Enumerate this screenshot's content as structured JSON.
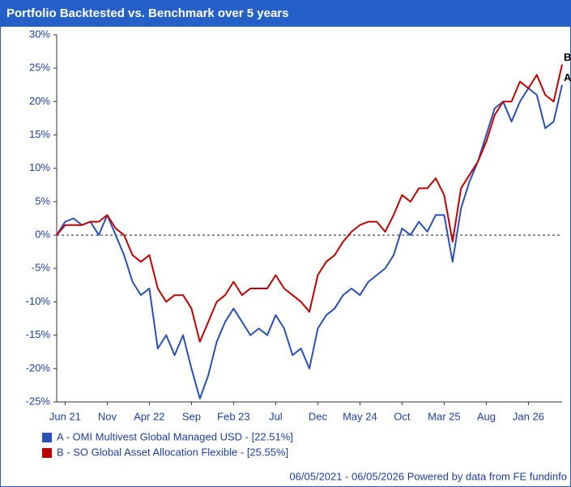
{
  "chart_data": {
    "type": "line",
    "title": "Portfolio Backtested vs. Benchmark over 5 years",
    "x": [
      0,
      1,
      2,
      3,
      4,
      5,
      6,
      7,
      8,
      9,
      10,
      11,
      12,
      13,
      14,
      15,
      16,
      17,
      18,
      19,
      20,
      21,
      22,
      23,
      24,
      25,
      26,
      27,
      28,
      29,
      30,
      31,
      32,
      33,
      34,
      35,
      36,
      37,
      38,
      39,
      40,
      41,
      42,
      43,
      44,
      45,
      46,
      47,
      48,
      49,
      50,
      51,
      52,
      53,
      54,
      55,
      56,
      57,
      58,
      59,
      60
    ],
    "xlim": [
      0,
      60
    ],
    "xticks": [
      {
        "value": 1,
        "label": "Jun 21"
      },
      {
        "value": 6,
        "label": "Nov"
      },
      {
        "value": 11,
        "label": "Apr 22"
      },
      {
        "value": 16,
        "label": "Sep"
      },
      {
        "value": 21,
        "label": "Feb 23"
      },
      {
        "value": 26,
        "label": "Jul"
      },
      {
        "value": 31,
        "label": "Dec"
      },
      {
        "value": 36,
        "label": "May 24"
      },
      {
        "value": 41,
        "label": "Oct"
      },
      {
        "value": 46,
        "label": "Mar 25"
      },
      {
        "value": 51,
        "label": "Aug"
      },
      {
        "value": 56,
        "label": "Jan 26"
      }
    ],
    "ylim": [
      -25,
      30
    ],
    "yticks": [
      {
        "value": -25,
        "label": "-25%"
      },
      {
        "value": -20,
        "label": "-20%"
      },
      {
        "value": -15,
        "label": "-15%"
      },
      {
        "value": -10,
        "label": "-10%"
      },
      {
        "value": -5,
        "label": "-5%"
      },
      {
        "value": 0,
        "label": "0%"
      },
      {
        "value": 5,
        "label": "5%"
      },
      {
        "value": 10,
        "label": "10%"
      },
      {
        "value": 15,
        "label": "15%"
      },
      {
        "value": 20,
        "label": "20%"
      },
      {
        "value": 25,
        "label": "25%"
      },
      {
        "value": 30,
        "label": "30%"
      }
    ],
    "hline": 0,
    "series": [
      {
        "name": "A - OMI Multivest Global Managed USD - [22.51%]",
        "end_label": "A",
        "color": "#2a4fb5",
        "values": [
          0,
          2,
          2.5,
          1.5,
          2,
          0,
          3,
          0,
          -3,
          -7,
          -9,
          -8,
          -17,
          -15,
          -18,
          -15,
          -20,
          -24.5,
          -21,
          -16,
          -13,
          -11,
          -13,
          -15,
          -14,
          -15,
          -12,
          -14,
          -18,
          -17,
          -20,
          -14,
          -12,
          -11,
          -9,
          -8,
          -9,
          -7,
          -6,
          -5,
          -3,
          1,
          0,
          2,
          0.5,
          3,
          3,
          -4,
          4,
          8,
          11,
          15,
          19,
          20,
          17,
          20,
          22,
          21,
          16,
          17,
          22.51
        ]
      },
      {
        "name": "B - SO Global Asset Allocation Flexible - [25.55%]",
        "end_label": "B",
        "color": "#c00000",
        "values": [
          0,
          1.5,
          1.5,
          1.5,
          2,
          2,
          3,
          1,
          0,
          -3,
          -4,
          -3,
          -8,
          -10,
          -9,
          -9,
          -11,
          -16,
          -13,
          -10,
          -9,
          -7,
          -9,
          -8,
          -8,
          -8,
          -6,
          -8,
          -9,
          -10,
          -11.5,
          -6,
          -4,
          -3,
          -1,
          0.5,
          1.5,
          2,
          2,
          0.5,
          3,
          6,
          5,
          7,
          7,
          8.5,
          6,
          -1,
          7,
          9,
          11,
          14,
          18,
          20,
          20,
          23,
          22,
          24,
          21,
          20,
          25.55
        ]
      }
    ],
    "footer": "06/05/2021 - 06/05/2026 Powered by data from FE fundinfo"
  }
}
